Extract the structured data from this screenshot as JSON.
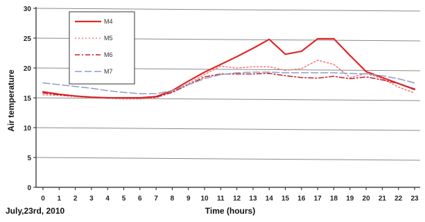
{
  "chart_data": {
    "type": "line",
    "xlabel": "Time (hours)",
    "ylabel": "Air temperature",
    "date_note": "July,23rd, 2010",
    "x": [
      0,
      1,
      2,
      3,
      4,
      5,
      6,
      7,
      8,
      9,
      10,
      11,
      12,
      13,
      14,
      15,
      16,
      17,
      18,
      19,
      20,
      21,
      22,
      23
    ],
    "xlim": [
      0,
      23
    ],
    "ylim": [
      0,
      30
    ],
    "yticks": [
      0,
      5,
      10,
      15,
      20,
      25,
      30
    ],
    "grid": true,
    "legend_position": "top-left",
    "series": [
      {
        "name": "M4",
        "color": "#e0282a",
        "dash": "solid",
        "values": [
          16.0,
          15.6,
          15.3,
          15.1,
          15.0,
          15.0,
          15.0,
          15.2,
          16.2,
          17.8,
          19.3,
          20.6,
          21.9,
          23.3,
          24.8,
          22.3,
          22.8,
          24.9,
          24.9,
          22.1,
          19.4,
          18.4,
          17.4,
          16.4
        ]
      },
      {
        "name": "M5",
        "color": "#f08080",
        "dash": "dotted",
        "values": [
          15.5,
          15.4,
          15.2,
          15.0,
          14.9,
          14.8,
          14.8,
          15.0,
          16.0,
          17.4,
          18.9,
          20.3,
          20.0,
          20.2,
          20.2,
          19.6,
          19.9,
          21.3,
          20.6,
          18.4,
          19.1,
          18.2,
          16.8,
          15.8
        ]
      },
      {
        "name": "M6",
        "color": "#c0202a",
        "dash": "dashdot",
        "values": [
          15.8,
          15.5,
          15.3,
          15.1,
          15.0,
          15.0,
          15.0,
          15.1,
          15.9,
          17.2,
          18.5,
          19.0,
          19.0,
          19.0,
          19.1,
          18.7,
          18.4,
          18.3,
          18.6,
          18.2,
          18.5,
          18.0,
          17.4,
          16.5
        ]
      },
      {
        "name": "M7",
        "color": "#8c9dc8",
        "dash": "longdash",
        "values": [
          17.5,
          17.2,
          16.9,
          16.6,
          16.2,
          15.9,
          15.7,
          15.7,
          16.2,
          17.2,
          18.2,
          18.9,
          19.2,
          19.3,
          19.3,
          19.2,
          19.2,
          19.2,
          19.2,
          19.1,
          19.0,
          18.7,
          18.2,
          17.5
        ]
      }
    ]
  }
}
